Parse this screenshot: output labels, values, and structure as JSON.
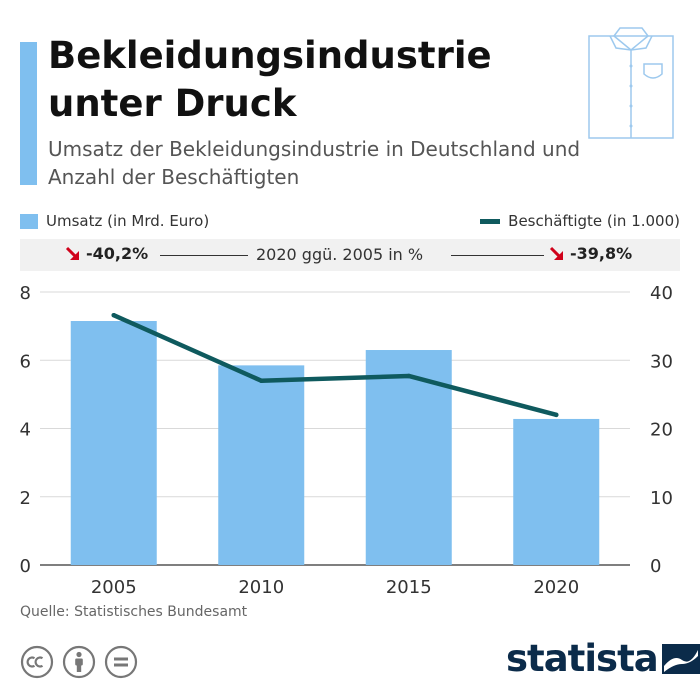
{
  "header": {
    "title": "Bekleidungsindustrie unter Druck",
    "subtitle": "Umsatz der Bekleidungsindustrie in Deutschland und Anzahl der Beschäftigten"
  },
  "legend": {
    "bars_label": "Umsatz (in Mrd. Euro)",
    "line_label": "Beschäftigte (in 1.000)"
  },
  "change": {
    "left_value": "-40,2%",
    "right_value": "-39,8%",
    "label": "2020 ggü. 2005 in %"
  },
  "chart_data": {
    "type": "bar",
    "categories": [
      "2005",
      "2010",
      "2015",
      "2020"
    ],
    "series": [
      {
        "name": "Umsatz (in Mrd. Euro)",
        "type": "bar",
        "axis": "left",
        "values": [
          7.15,
          5.85,
          6.3,
          4.28
        ]
      },
      {
        "name": "Beschäftigte (in 1.000)",
        "type": "line",
        "axis": "right",
        "values": [
          36.6,
          27.0,
          27.7,
          22.0
        ]
      }
    ],
    "y_left": {
      "min": 0,
      "max": 8,
      "ticks": [
        "0",
        "2",
        "4",
        "6",
        "8"
      ]
    },
    "y_right": {
      "min": 0,
      "max": 40,
      "ticks": [
        "0",
        "10",
        "20",
        "30",
        "40"
      ]
    },
    "grid": true,
    "legend_position": "top"
  },
  "footer": {
    "source": "Quelle: Statistisches Bundesamt",
    "brand": "statista",
    "license_icons": [
      "cc-icon",
      "attribution-icon",
      "no-derivatives-icon"
    ]
  },
  "colors": {
    "bar": "#7fbfef",
    "line": "#0f5a5e",
    "accent": "#7fbfef",
    "down_arrow": "#d0021b",
    "brand": "#0b2b4a"
  },
  "icons": {
    "header": "shirt-icon",
    "trend": "arrow-down-icon"
  }
}
